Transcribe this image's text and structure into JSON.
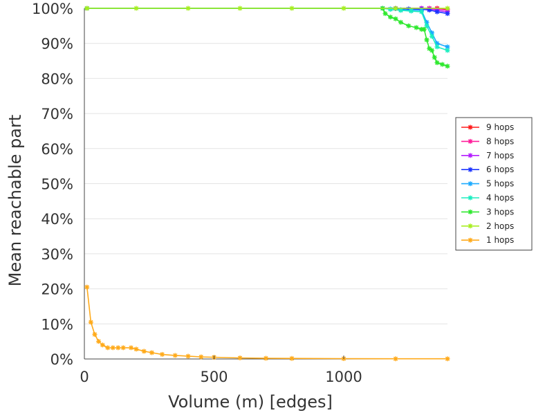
{
  "chart_data": {
    "type": "line",
    "title": "",
    "xlabel": "Volume (m) [edges]",
    "ylabel": "Mean reachable part",
    "xlim": [
      0,
      1400
    ],
    "ylim": [
      0,
      100
    ],
    "x_ticks": [
      {
        "value": 0,
        "label": "0"
      },
      {
        "value": 500,
        "label": "500"
      },
      {
        "value": 1000,
        "label": "1000"
      }
    ],
    "y_ticks": [
      {
        "value": 0,
        "label": "0%"
      },
      {
        "value": 10,
        "label": "10%"
      },
      {
        "value": 20,
        "label": "20%"
      },
      {
        "value": 30,
        "label": "30%"
      },
      {
        "value": 40,
        "label": "40%"
      },
      {
        "value": 50,
        "label": "50%"
      },
      {
        "value": 60,
        "label": "60%"
      },
      {
        "value": 70,
        "label": "70%"
      },
      {
        "value": 80,
        "label": "80%"
      },
      {
        "value": 90,
        "label": "90%"
      },
      {
        "value": 100,
        "label": "100%"
      }
    ],
    "grid": "horizontal",
    "legend_position": "right",
    "series": [
      {
        "name": "9 hops",
        "color": "#ff1a1a",
        "x": [
          10,
          1150,
          1200,
          1300,
          1330,
          1360,
          1400
        ],
        "y": [
          100,
          100,
          100,
          100,
          100,
          100,
          99.6
        ]
      },
      {
        "name": "8 hops",
        "color": "#ff1a99",
        "x": [
          10,
          1150,
          1200,
          1300,
          1330,
          1360,
          1400
        ],
        "y": [
          100,
          100,
          100,
          100,
          100,
          99.8,
          99.5
        ]
      },
      {
        "name": "7 hops",
        "color": "#b31aff",
        "x": [
          10,
          1150,
          1200,
          1300,
          1330,
          1360,
          1400
        ],
        "y": [
          100,
          100,
          100,
          100,
          99.8,
          99.4,
          99
        ]
      },
      {
        "name": "6 hops",
        "color": "#1a33ff",
        "x": [
          10,
          1150,
          1200,
          1250,
          1300,
          1330,
          1360,
          1400
        ],
        "y": [
          100,
          100,
          99.9,
          99.8,
          99.7,
          99.5,
          99,
          98.5
        ]
      },
      {
        "name": "5 hops",
        "color": "#1aaaff",
        "x": [
          10,
          1150,
          1180,
          1220,
          1260,
          1300,
          1320,
          1340,
          1360,
          1400
        ],
        "y": [
          100,
          100,
          99.8,
          99.6,
          99.4,
          99.4,
          96,
          93,
          90,
          89
        ]
      },
      {
        "name": "4 hops",
        "color": "#1aeec0",
        "x": [
          10,
          1150,
          1180,
          1220,
          1260,
          1300,
          1320,
          1340,
          1360,
          1400
        ],
        "y": [
          100,
          100,
          99.7,
          99.4,
          99.2,
          99,
          95,
          92,
          89,
          88
        ]
      },
      {
        "name": "3 hops",
        "color": "#2ee82e",
        "x": [
          10,
          1150,
          1160,
          1180,
          1200,
          1220,
          1250,
          1280,
          1300,
          1310,
          1320,
          1330,
          1340,
          1350,
          1360,
          1380,
          1400
        ],
        "y": [
          100,
          100,
          98.5,
          97.5,
          97,
          96,
          95,
          94.5,
          94,
          94,
          91,
          88.5,
          88,
          86,
          84.5,
          84,
          83.5
        ]
      },
      {
        "name": "2 hops",
        "color": "#a8ee20",
        "x": [
          10,
          200,
          400,
          600,
          800,
          1000,
          1200,
          1400
        ],
        "y": [
          100,
          100,
          100,
          100,
          100,
          100,
          100,
          100
        ]
      },
      {
        "name": "1 hops",
        "color": "#ffaa1a",
        "x": [
          10,
          25,
          40,
          55,
          70,
          90,
          110,
          130,
          150,
          180,
          200,
          230,
          260,
          300,
          350,
          400,
          450,
          500,
          600,
          700,
          800,
          1000,
          1200,
          1400
        ],
        "y": [
          20.5,
          10.5,
          7,
          5,
          4,
          3.2,
          3.2,
          3.2,
          3.2,
          3.2,
          2.8,
          2.2,
          1.8,
          1.3,
          1,
          0.8,
          0.6,
          0.5,
          0.3,
          0.2,
          0.15,
          0.1,
          0.05,
          0.05
        ]
      }
    ]
  }
}
